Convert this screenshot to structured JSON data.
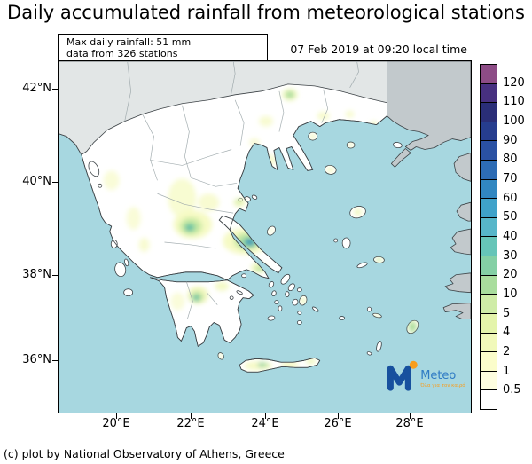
{
  "title": "Daily accumulated rainfall from meteorological stations",
  "header": {
    "max_rainfall": "Max daily rainfall: 51 mm",
    "stations": "data from 326 stations",
    "datetime": "07 Feb 2019 at 09:20 local time"
  },
  "axes": {
    "lat": [
      "42°N",
      "40°N",
      "38°N",
      "36°N"
    ],
    "lon": [
      "20°E",
      "22°E",
      "24°E",
      "26°E",
      "28°E"
    ]
  },
  "colorbar": {
    "labels": [
      "120",
      "110",
      "100",
      "90",
      "80",
      "70",
      "60",
      "50",
      "40",
      "30",
      "20",
      "10",
      "5",
      "4",
      "2",
      "1",
      "0.5"
    ],
    "cell_colors_top_to_bottom": [
      "#8d4c86",
      "#473080",
      "#2a2e78",
      "#263d8f",
      "#2a51a3",
      "#2d6cb5",
      "#3187c1",
      "#3fa2ca",
      "#57b6c9",
      "#66c5b8",
      "#84d0a5",
      "#a9dd9d",
      "#cfeca7",
      "#e4f4ab",
      "#f1f9ba",
      "#fbfdcb",
      "#fefee0",
      "#ffffff"
    ]
  },
  "map_colors": {
    "sea": "#a7d7e0",
    "greek_land": "#ffffff",
    "neighbor_land": "#e2e6e6",
    "turkey_land": "#c2c9cc"
  },
  "logo": {
    "brand": "Meteo",
    "tagline": "Όλα για τον καιρό",
    "blue": "#17509e",
    "orange": "#f89d1c"
  },
  "credit": "(c) plot by National Observatory of Athens, Greece"
}
